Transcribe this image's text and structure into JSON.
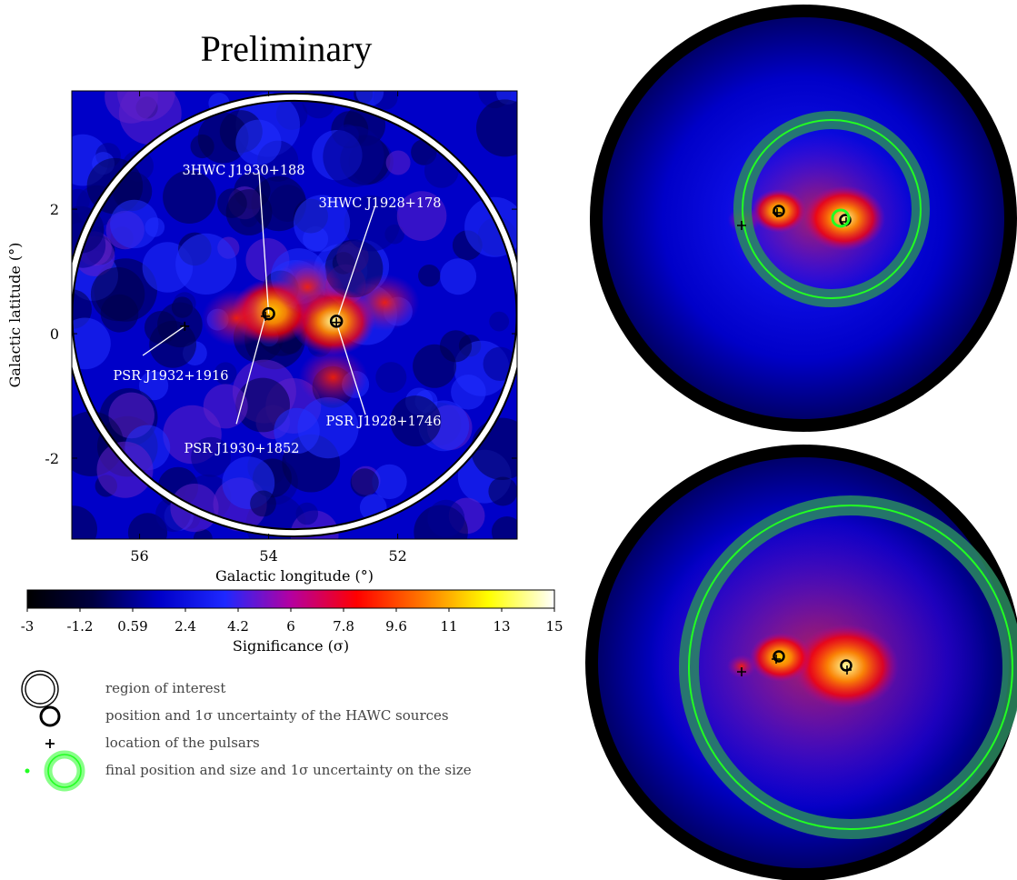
{
  "header": {
    "title": "Preliminary"
  },
  "chart_data": [
    {
      "type": "heatmap",
      "title": "",
      "xlabel": "Galactic longitude (°)",
      "ylabel": "Galactic latitude (°)",
      "xlim": [
        57.05,
        50.15
      ],
      "ylim": [
        -3.3,
        3.9
      ],
      "x_reversed": true,
      "xticks": [
        56,
        54,
        52
      ],
      "yticks": [
        -2,
        0,
        2
      ],
      "colorbar": {
        "label": "Significance (σ)",
        "range": [
          -3,
          15
        ],
        "ticks": [
          "-3",
          "-1.2",
          "0.59",
          "2.4",
          "4.2",
          "6",
          "7.8",
          "9.6",
          "11",
          "13",
          "15"
        ],
        "colormap": [
          "#000000",
          "#000040",
          "#0000c8",
          "#1e28ff",
          "#b400a0",
          "#ff0000",
          "#ff7800",
          "#ffff00",
          "#ffffff"
        ]
      },
      "region_of_interest": {
        "center": [
          53.6,
          0.3
        ],
        "radius_deg": 3.5
      },
      "hawc_sources": [
        {
          "name": "3HWC J1930+188",
          "l": 54.0,
          "b": 0.32
        },
        {
          "name": "3HWC J1928+178",
          "l": 52.95,
          "b": 0.2
        }
      ],
      "pulsars": [
        {
          "name": "PSR J1932+1916",
          "l": 55.3,
          "b": 0.12
        },
        {
          "name": "PSR J1930+1852",
          "l": 54.05,
          "b": 0.28
        },
        {
          "name": "PSR J1928+1746",
          "l": 52.95,
          "b": 0.18
        }
      ],
      "emission_blobs": [
        {
          "l": 53.0,
          "b": 0.2,
          "peak": 13
        },
        {
          "l": 53.95,
          "b": 0.35,
          "peak": 9
        },
        {
          "l": 54.5,
          "b": 0.25,
          "peak": 7
        },
        {
          "l": 53.4,
          "b": 0.75,
          "peak": 6.5
        },
        {
          "l": 52.2,
          "b": 0.5,
          "peak": 4
        },
        {
          "l": 53.0,
          "b": -0.7,
          "peak": 4
        }
      ]
    }
  ],
  "model_maps": [
    {
      "name": "top",
      "colors": {
        "background_disk": "#0000c8",
        "outer_ring": "#000000",
        "fit_circle": "#22ff22"
      }
    },
    {
      "name": "bottom",
      "colors": {
        "background_disk": "#0000c8",
        "outer_ring": "#000000",
        "fit_circle": "#22ff22"
      }
    }
  ],
  "legend": {
    "items": [
      {
        "symbol": "double-ring-icon",
        "label": "region of interest"
      },
      {
        "symbol": "black-ring-icon",
        "label": "position and 1σ uncertainty of the HAWC sources"
      },
      {
        "symbol": "plus-icon",
        "label": "location of the pulsars"
      },
      {
        "symbol": "green-ring-icon",
        "label": "final position and size and 1σ uncertainty on the size"
      }
    ]
  }
}
